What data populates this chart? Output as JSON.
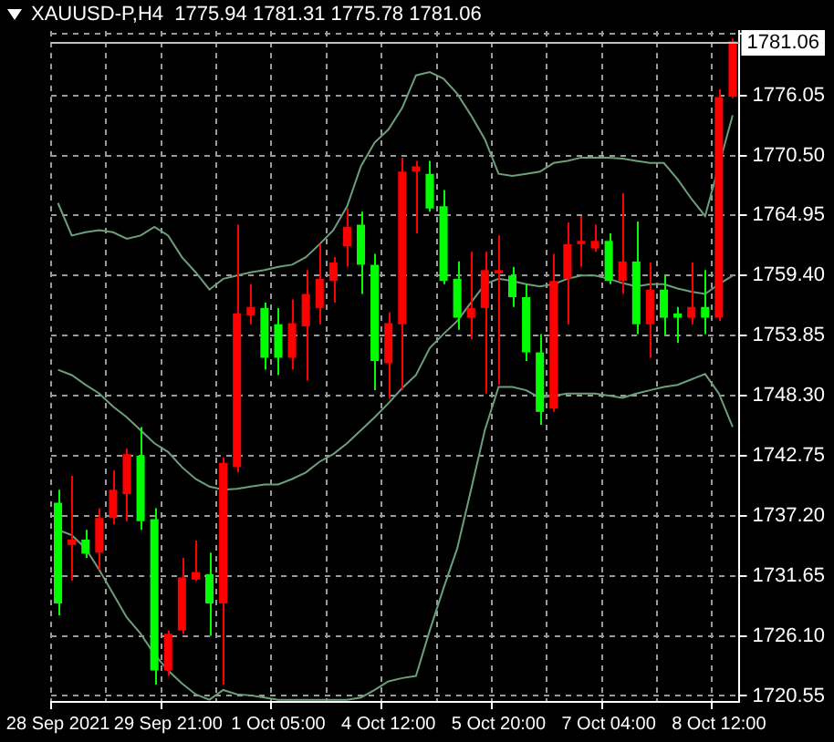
{
  "chart_data": {
    "type": "candlestick",
    "title": "XAUUSD-P,H4  1775.94 1781.31 1775.78 1781.06",
    "categories": [
      "28 Sep 2021",
      null,
      null,
      null,
      null,
      null,
      null,
      null,
      "29 Sep 21:00",
      null,
      null,
      null,
      null,
      null,
      null,
      null,
      "1 Oct 05:00",
      null,
      null,
      null,
      null,
      null,
      null,
      null,
      "4 Oct 12:00",
      null,
      null,
      null,
      null,
      null,
      null,
      null,
      "5 Oct 20:00",
      null,
      null,
      null,
      null,
      null,
      null,
      null,
      "7 Oct 04:00",
      null,
      null,
      null,
      null,
      null,
      null,
      null,
      "8 Oct 12:00",
      null
    ],
    "ohlc": [
      [
        1738.4,
        1739.6,
        1728.0,
        1729.1
      ],
      [
        1734.5,
        1740.9,
        1731.2,
        1735.0
      ],
      [
        1735.0,
        1735.9,
        1733.3,
        1733.7
      ],
      [
        1733.8,
        1737.9,
        1732.2,
        1737.0
      ],
      [
        1737.0,
        1741.4,
        1736.4,
        1739.6
      ],
      [
        1739.2,
        1743.4,
        1736.7,
        1742.9
      ],
      [
        1742.75,
        1745.4,
        1735.9,
        1736.7
      ],
      [
        1736.9,
        1737.9,
        1721.6,
        1722.9
      ],
      [
        1722.9,
        1726.6,
        1722.4,
        1726.3
      ],
      [
        1726.6,
        1733.3,
        1726.3,
        1731.5
      ],
      [
        1731.3,
        1734.9,
        1731.2,
        1732.0
      ],
      [
        1731.8,
        1733.8,
        1726.1,
        1729.1
      ],
      [
        1729.1,
        1742.6,
        1721.6,
        1742.1
      ],
      [
        1741.7,
        1764.1,
        1741.2,
        1755.9
      ],
      [
        1755.7,
        1758.6,
        1754.9,
        1756.5
      ],
      [
        1756.4,
        1756.9,
        1750.7,
        1751.8
      ],
      [
        1754.9,
        1756.4,
        1750.2,
        1751.8
      ],
      [
        1751.8,
        1757.2,
        1750.7,
        1755.0
      ],
      [
        1754.7,
        1759.9,
        1749.7,
        1757.7
      ],
      [
        1756.4,
        1762.3,
        1754.9,
        1759.1
      ],
      [
        1758.9,
        1761.1,
        1756.9,
        1760.6
      ],
      [
        1762.1,
        1765.6,
        1760.2,
        1763.9
      ],
      [
        1764.1,
        1765.3,
        1757.7,
        1760.4
      ],
      [
        1760.4,
        1761.4,
        1748.8,
        1751.5
      ],
      [
        1751.3,
        1756.0,
        1748.0,
        1755.0
      ],
      [
        1754.9,
        1770.3,
        1748.8,
        1769.0
      ],
      [
        1769.0,
        1770.0,
        1763.3,
        1769.5
      ],
      [
        1768.8,
        1770.0,
        1765.3,
        1765.6
      ],
      [
        1765.8,
        1767.3,
        1758.6,
        1758.9
      ],
      [
        1759.1,
        1760.7,
        1754.4,
        1755.5
      ],
      [
        1755.5,
        1761.6,
        1753.5,
        1756.4
      ],
      [
        1756.4,
        1761.6,
        1748.5,
        1759.9
      ],
      [
        1759.6,
        1763.1,
        1749.3,
        1759.9
      ],
      [
        1759.4,
        1760.2,
        1756.5,
        1757.4
      ],
      [
        1757.4,
        1758.6,
        1751.5,
        1752.3
      ],
      [
        1752.3,
        1754.0,
        1745.6,
        1746.8
      ],
      [
        1747.1,
        1761.4,
        1746.8,
        1758.9
      ],
      [
        1759.1,
        1764.3,
        1754.9,
        1762.3
      ],
      [
        1762.3,
        1764.9,
        1760.2,
        1762.6
      ],
      [
        1761.9,
        1764.1,
        1761.6,
        1762.6
      ],
      [
        1762.6,
        1763.3,
        1758.6,
        1758.9
      ],
      [
        1758.9,
        1767.0,
        1757.7,
        1760.7
      ],
      [
        1760.7,
        1764.4,
        1754.0,
        1754.9
      ],
      [
        1754.9,
        1760.6,
        1751.8,
        1758.1
      ],
      [
        1758.1,
        1759.4,
        1753.85,
        1755.5
      ],
      [
        1755.9,
        1756.5,
        1753.2,
        1755.5
      ],
      [
        1755.5,
        1760.6,
        1754.9,
        1756.5
      ],
      [
        1756.5,
        1759.9,
        1754.0,
        1755.5
      ],
      [
        1755.5,
        1776.6,
        1755.2,
        1775.9
      ],
      [
        1775.94,
        1781.31,
        1775.78,
        1781.06
      ]
    ],
    "colors": [
      "#00ff00",
      "#ff0000",
      "#00ff00",
      "#ff0000",
      "#ff0000",
      "#ff0000",
      "#00ff00",
      "#00ff00",
      "#ff0000",
      "#ff0000",
      "#ff0000",
      "#00ff00",
      "#ff0000",
      "#ff0000",
      "#ff0000",
      "#00ff00",
      "#00ff00",
      "#ff0000",
      "#ff0000",
      "#ff0000",
      "#ff0000",
      "#ff0000",
      "#00ff00",
      "#00ff00",
      "#ff0000",
      "#ff0000",
      "#ff0000",
      "#00ff00",
      "#00ff00",
      "#00ff00",
      "#ff0000",
      "#ff0000",
      "#ff0000",
      "#00ff00",
      "#00ff00",
      "#00ff00",
      "#ff0000",
      "#ff0000",
      "#ff0000",
      "#ff0000",
      "#00ff00",
      "#ff0000",
      "#00ff00",
      "#ff0000",
      "#00ff00",
      "#00ff00",
      "#ff0000",
      "#00ff00",
      "#ff0000",
      "#ff0000"
    ],
    "series": [
      {
        "type": "line",
        "color": "#6b9f7b",
        "values": [
          1766.1,
          1763.1,
          1763.4,
          1763.6,
          1763.4,
          1762.8,
          1763.1,
          1763.9,
          1763.1,
          1761.1,
          1759.7,
          1758.1,
          1759.1,
          1759.4,
          1759.7,
          1759.9,
          1760.2,
          1760.4,
          1761.1,
          1762.3,
          1763.6,
          1765.8,
          1769.5,
          1771.7,
          1772.9,
          1774.9,
          1777.9,
          1778.2,
          1777.6,
          1776.2,
          1774.2,
          1772.0,
          1768.8,
          1768.6,
          1768.8,
          1769.0,
          1769.8,
          1770.0,
          1770.3,
          1770.3,
          1770.3,
          1770.2,
          1770.0,
          1769.8,
          1769.8,
          1768.3,
          1766.5,
          1764.9,
          null,
          1774.2
        ]
      },
      {
        "type": "line",
        "color": "#6b9f7b",
        "values": [
          1750.7,
          1750.2,
          1749.3,
          1748.5,
          1747.3,
          1746.3,
          1745.1,
          1743.9,
          1743.1,
          1741.7,
          1740.6,
          1739.9,
          1739.6,
          1739.7,
          1739.9,
          1740.1,
          1740.1,
          1740.6,
          1741.2,
          1742.2,
          1742.9,
          1743.9,
          1745.1,
          1746.3,
          1747.6,
          1749.0,
          1750.2,
          1752.7,
          1754.0,
          1755.2,
          1756.9,
          1758.6,
          1759.1,
          1758.9,
          1758.6,
          1758.4,
          1758.6,
          1759.1,
          1759.4,
          1759.4,
          1759.1,
          1758.7,
          1758.4,
          1758.6,
          1758.6,
          1758.2,
          1757.9,
          1757.7,
          1758.6,
          1759.4
        ]
      },
      {
        "type": "line",
        "color": "#6b9f7b",
        "values": [
          1735.9,
          1735.4,
          1734.2,
          1732.2,
          1730.0,
          1727.8,
          1726.3,
          1724.4,
          1722.9,
          1721.7,
          1720.7,
          1720.2,
          1721.1,
          1720.7,
          1720.6,
          1720.4,
          1720.2,
          1720.2,
          1720.2,
          1720.2,
          1720.2,
          1720.2,
          1720.4,
          1721.1,
          1721.9,
          1722.2,
          1722.4,
          1726.6,
          1730.5,
          1734.2,
          1739.6,
          1745.1,
          1749.1,
          1749.1,
          1748.8,
          1748.1,
          1748.3,
          1748.5,
          1748.5,
          1748.5,
          1748.3,
          1748.1,
          1748.5,
          1748.8,
          1749.1,
          1749.3,
          1749.8,
          1750.3,
          1748.5,
          1745.4
        ]
      }
    ],
    "ylim": [
      1720.0,
      1782.0
    ],
    "yticks": [
      {
        "value": 1720.55,
        "label": "1720.55"
      },
      {
        "value": 1726.1,
        "label": "1726.10"
      },
      1731.65,
      {
        "value": 1737.2,
        "label": "1737.20"
      },
      1742.75,
      {
        "value": 1748.3,
        "label": "1748.30"
      },
      1753.85,
      {
        "value": 1759.4,
        "label": "1759.40"
      },
      1764.95,
      {
        "value": 1770.5,
        "label": "1770.50"
      },
      1776.05,
      {
        "value": 1781.75,
        "label": null
      }
    ],
    "ref_lines": [
      {
        "axis": "y",
        "value": 1781.06,
        "label": "1781.06",
        "color": "#c0c0c0"
      }
    ],
    "grid": true,
    "marker": "none"
  }
}
